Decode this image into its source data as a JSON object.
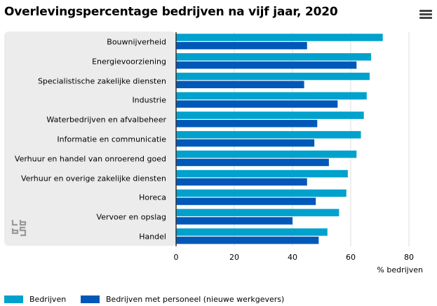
{
  "header": {
    "title": "Overlevingspercentage bedrijven na vijf jaar, 2020"
  },
  "icons": {
    "menu": "hamburger-menu-icon",
    "logo": "cbs-logo-icon"
  },
  "colors": {
    "bedrijven": "#00a1cd",
    "personeel": "#0058b8",
    "panel": "#ececec",
    "grid": "#dcdcdc"
  },
  "chart_data": {
    "type": "bar",
    "orientation": "horizontal",
    "title": "Overlevingspercentage bedrijven na vijf jaar, 2020",
    "xlabel": "% bedrijven",
    "xlim": [
      0,
      80
    ],
    "xticks": [
      "0",
      "20",
      "40",
      "60",
      "80"
    ],
    "categories": [
      "Bouwnijverheid",
      "Energievoorziening",
      "Specialistische zakelijke diensten",
      "Industrie",
      "Waterbedrijven en afvalbeheer",
      "Informatie en communicatie",
      "Verhuur en handel van onroerend goed",
      "Verhuur en overige zakelijke diensten",
      "Horeca",
      "Vervoer en opslag",
      "Handel"
    ],
    "series": [
      {
        "name": "Bedrijven",
        "values": [
          71,
          67,
          66.5,
          65.5,
          64.5,
          63.5,
          62,
          59,
          58.5,
          56,
          52
        ]
      },
      {
        "name": "Bedrijven met personeel (nieuwe werkgevers)",
        "values": [
          45,
          62,
          44,
          55.5,
          48.5,
          47.5,
          52.5,
          45,
          48,
          40,
          49
        ]
      }
    ],
    "grid": true,
    "legend_position": "bottom-left"
  }
}
